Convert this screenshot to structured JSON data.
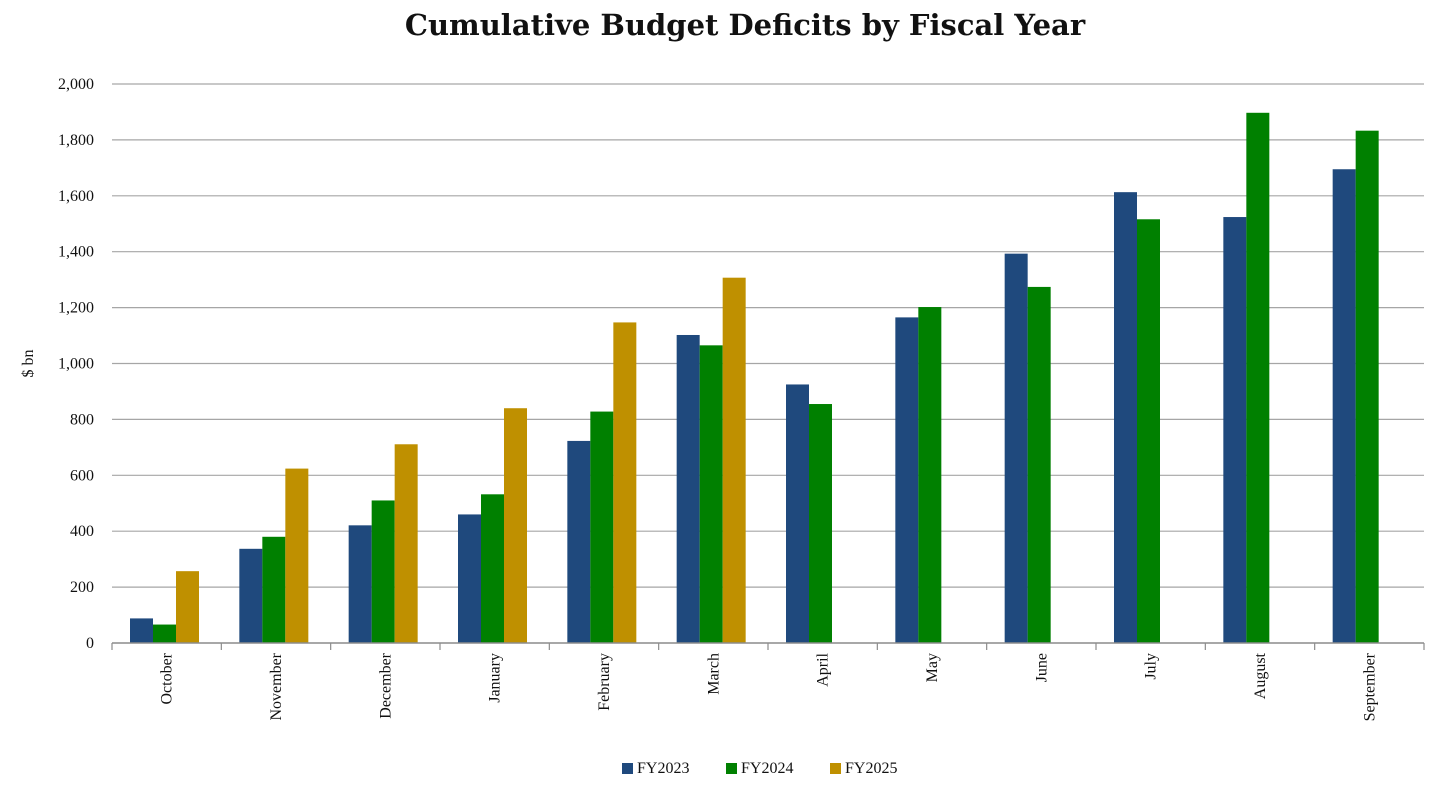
{
  "chart_data": {
    "type": "bar",
    "title": "Cumulative Budget Deficits by Fiscal Year",
    "xlabel": "",
    "ylabel": "$ bn",
    "ylim": [
      0,
      2000
    ],
    "yticks": [
      0,
      200,
      400,
      600,
      800,
      1000,
      1200,
      1400,
      1600,
      1800,
      2000
    ],
    "ytick_labels": [
      "0",
      "200",
      "400",
      "600",
      "800",
      "1,000",
      "1,200",
      "1,400",
      "1,600",
      "1,800",
      "2,000"
    ],
    "grid": true,
    "legend_position": "bottom",
    "categories": [
      "October",
      "November",
      "December",
      "January",
      "February",
      "March",
      "April",
      "May",
      "June",
      "July",
      "August",
      "September"
    ],
    "series": [
      {
        "name": "FY2023",
        "color": "#1f497d",
        "values": [
          88,
          337,
          421,
          460,
          723,
          1102,
          925,
          1165,
          1393,
          1613,
          1524,
          1695
        ]
      },
      {
        "name": "FY2024",
        "color": "#008000",
        "values": [
          66,
          380,
          510,
          532,
          828,
          1065,
          855,
          1202,
          1274,
          1516,
          1897,
          1833
        ]
      },
      {
        "name": "FY2025",
        "color": "#bf9000",
        "values": [
          257,
          624,
          711,
          840,
          1147,
          1307,
          null,
          null,
          null,
          null,
          null,
          null
        ]
      }
    ]
  }
}
